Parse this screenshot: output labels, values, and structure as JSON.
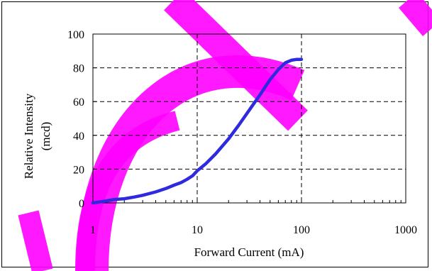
{
  "chart_data": {
    "type": "line",
    "xscale": "log",
    "xlim": [
      1,
      1000
    ],
    "ylim": [
      0,
      100
    ],
    "xticks": [
      1,
      10,
      100,
      1000
    ],
    "xtick_labels": [
      "1",
      "10",
      "100",
      "1000"
    ],
    "yticks": [
      0,
      20,
      40,
      60,
      80,
      100
    ],
    "ytick_labels": [
      "0",
      "20",
      "40",
      "60",
      "80",
      "100"
    ],
    "xlabel": "Forward Current (mA)",
    "ylabel_line1": "Relative Intensity",
    "ylabel_line2": "(mcd)",
    "grid": true,
    "grid_style": "dashed",
    "series": [
      {
        "color": "#2f2ae0",
        "x": [
          1,
          1.3,
          1.6,
          2,
          2.5,
          3,
          4,
          5,
          6,
          7,
          8,
          9,
          10,
          12,
          15,
          20,
          25,
          30,
          40,
          50,
          60,
          70,
          80,
          90,
          100
        ],
        "y": [
          0,
          1,
          2,
          2.5,
          3.5,
          4.5,
          6.5,
          8.5,
          10.5,
          12,
          14,
          16,
          19,
          23,
          29,
          38,
          46,
          53,
          64,
          73,
          79,
          83,
          84.5,
          85,
          85
        ]
      }
    ]
  },
  "watermark": {
    "color": "#ff00ff"
  }
}
